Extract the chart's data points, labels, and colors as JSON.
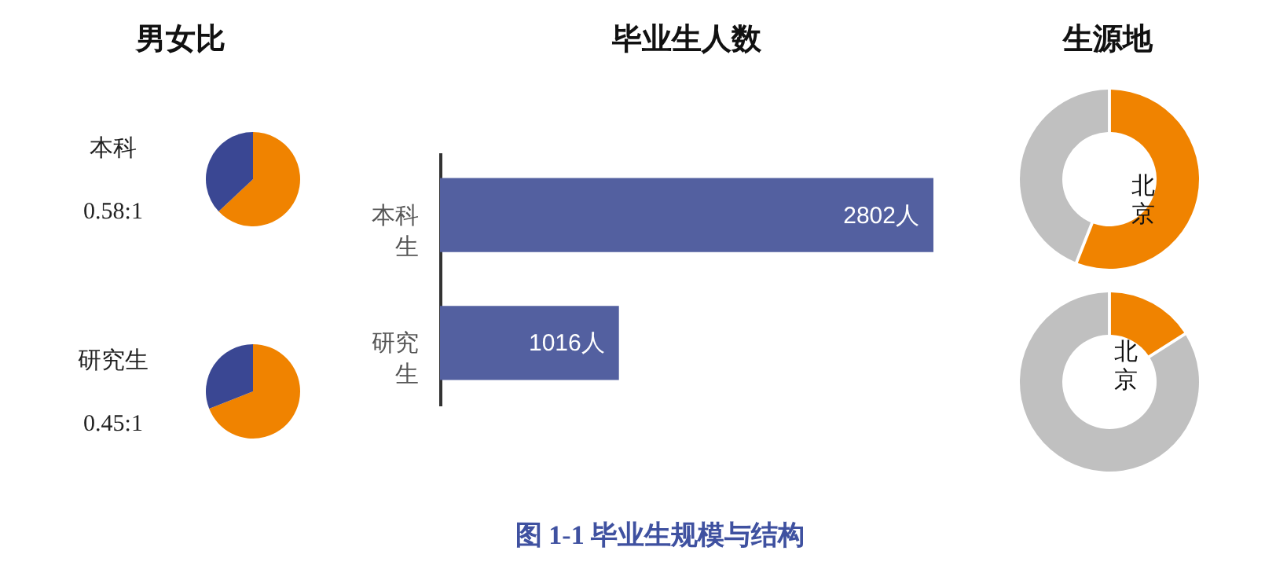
{
  "chart_data": [
    {
      "type": "pie",
      "title": "男女比",
      "annotations": [
        "本科",
        "0.58:1"
      ],
      "categories": [
        null,
        null
      ],
      "values": [
        63,
        37
      ],
      "colors": [
        "#f08300",
        "#3a4793"
      ]
    },
    {
      "type": "pie",
      "annotations": [
        "研究生",
        "0.45:1"
      ],
      "categories": [
        null,
        null
      ],
      "values": [
        69,
        31
      ],
      "colors": [
        "#f08300",
        "#3a4793"
      ]
    },
    {
      "type": "bar",
      "title": "毕业生人数",
      "orientation": "horizontal",
      "categories": [
        "本科生",
        "研究生"
      ],
      "values": [
        2802,
        1016
      ],
      "value_labels": [
        "2802人",
        "1016人"
      ],
      "color": "#5360a0"
    },
    {
      "type": "donut",
      "title": "生源地",
      "categories": [
        "北京",
        null
      ],
      "values": [
        56,
        44
      ],
      "colors": [
        "#f08300",
        "#c0c0c0"
      ]
    },
    {
      "type": "donut",
      "categories": [
        "北京",
        null
      ],
      "values": [
        16,
        84
      ],
      "colors": [
        "#f08300",
        "#c0c0c0"
      ]
    },
    {
      "type": "other",
      "annotations": [
        "图 1-1 毕业生规模与结构"
      ]
    }
  ]
}
